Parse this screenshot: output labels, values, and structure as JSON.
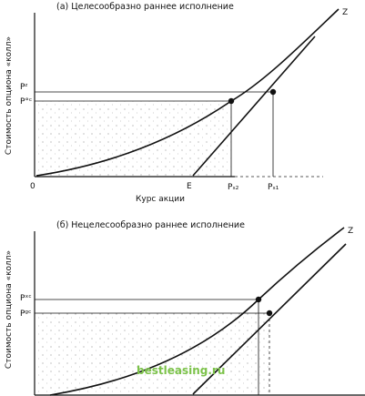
{
  "chart_data": [
    {
      "type": "line",
      "title": "(а) Целесообразно раннее исполнение",
      "ylabel": "Стоимость опциона «колл»",
      "xlabel": "Курс акции",
      "origin_label": "0",
      "curve_label": "Z",
      "price_labels": [
        "Pᶻ",
        "P°ᶜ"
      ],
      "x_labels": [
        "E",
        "Pₛ₂",
        "Pₛ₁"
      ]
    },
    {
      "type": "line",
      "title": "(б) Нецелесообразно раннее исполнение",
      "ylabel": "Стоимость опциона «колл»",
      "curve_label": "Z",
      "price_labels": [
        "Pˣᶜ",
        "Pᵍᶜ"
      ]
    }
  ],
  "watermark": "bestleasing.ru"
}
